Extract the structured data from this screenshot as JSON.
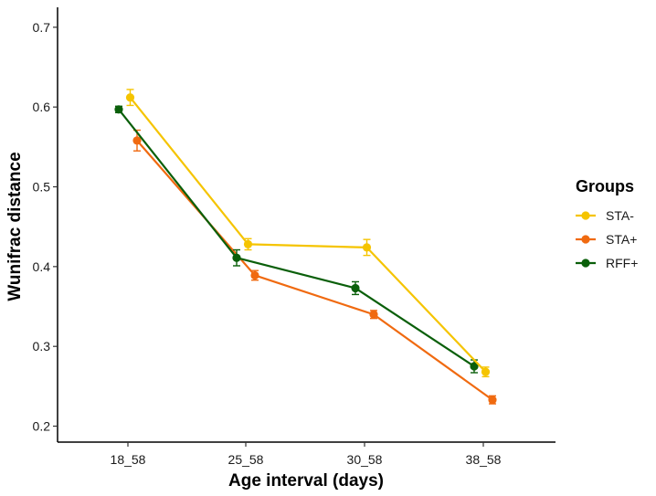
{
  "chart_data": {
    "type": "line",
    "title": "",
    "xlabel": "Age interval (days)",
    "ylabel": "Wunifrac distance",
    "categories": [
      "18_58",
      "25_58",
      "30_58",
      "38_58"
    ],
    "ylim": [
      0.18,
      0.725
    ],
    "yticks": [
      0.2,
      0.3,
      0.4,
      0.5,
      0.6,
      0.7
    ],
    "ytick_labels": [
      "0.2",
      "0.3",
      "0.4",
      "0.5",
      "0.6",
      "0.7"
    ],
    "grid": false,
    "legend": {
      "title": "Groups",
      "position": "right"
    },
    "series": [
      {
        "name": "STA-",
        "color": "#F5C400",
        "values": [
          0.612,
          0.428,
          0.424,
          0.268
        ],
        "errors": [
          0.01,
          0.007,
          0.01,
          0.006
        ]
      },
      {
        "name": "STA+",
        "color": "#F06A10",
        "values": [
          0.558,
          0.389,
          0.34,
          0.233
        ],
        "errors": [
          0.013,
          0.006,
          0.005,
          0.005
        ]
      },
      {
        "name": "RFF+",
        "color": "#0A5F0A",
        "values": [
          0.597,
          0.411,
          0.373,
          0.275
        ],
        "errors": [
          0.004,
          0.01,
          0.008,
          0.008
        ]
      }
    ]
  }
}
